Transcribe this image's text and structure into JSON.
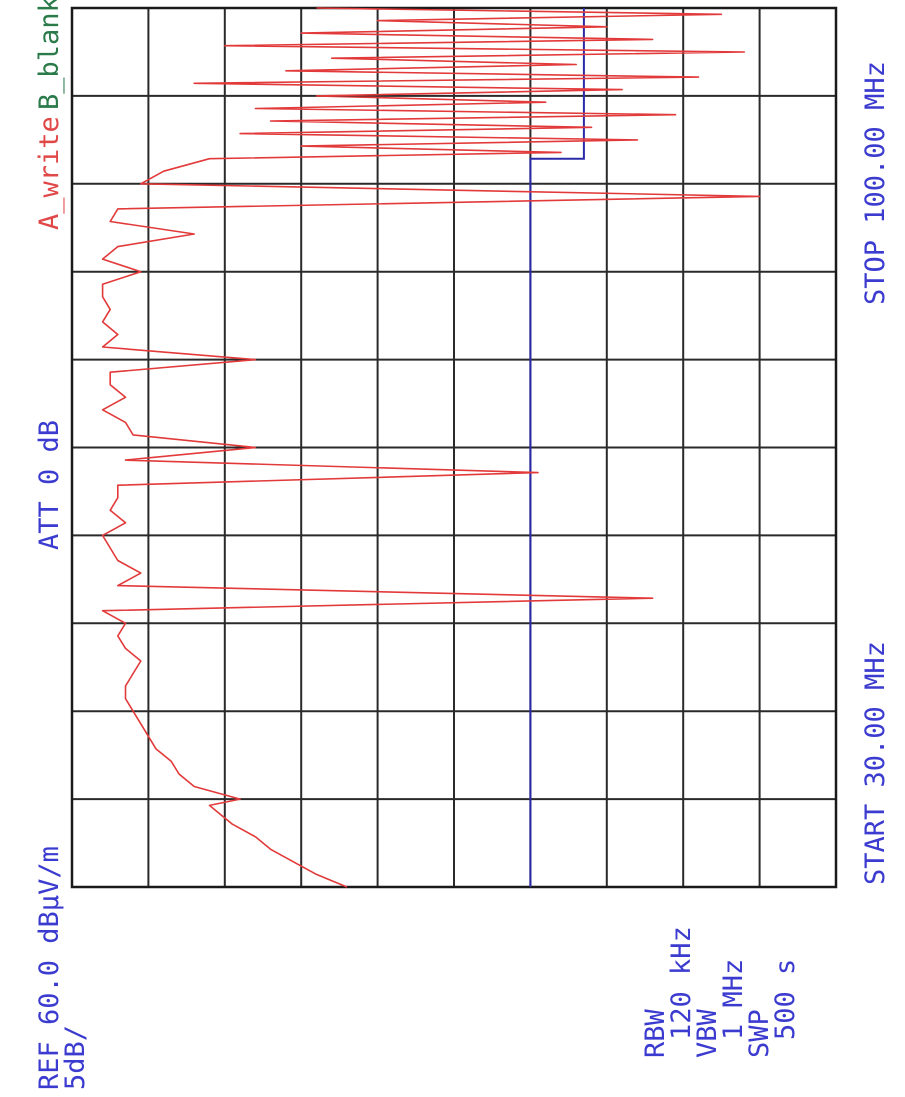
{
  "chart_data": {
    "type": "line",
    "orientation": "rotated-90-clockwise",
    "x_axis": {
      "start_label": "START 30.00 MHz",
      "stop_label": "STOP 100.00 MHz",
      "range_mhz": [
        30,
        100
      ],
      "divisions": 10
    },
    "y_axis": {
      "ref_label": "REF 60.0 dBμV/m",
      "scale_label": "5dB/",
      "ref_db": 60,
      "db_per_div": 5,
      "range_db": [
        10,
        60
      ],
      "divisions": 10
    },
    "settings": {
      "att_label": "ATT 0 dB",
      "rbw_label": "RBW",
      "rbw_value": "120 kHz",
      "vbw_label": "VBW",
      "vbw_value": "1 MHz",
      "swp_label": "SWP",
      "swp_value": "500 s"
    },
    "trace_labels": {
      "a": "A_write",
      "b": "B_blank"
    },
    "colors": {
      "trace_a": "#e23a3a",
      "limit_b": "#2a2aa8",
      "grid": "#2a2a2a",
      "text": "#3b3bd0",
      "label_a": "#e04848",
      "label_b": "#2a7a4a"
    },
    "series": [
      {
        "id": "limit",
        "segments": [
          {
            "x": [
              30,
              88
            ],
            "y": [
              40,
              40
            ]
          },
          {
            "x": [
              88,
              100
            ],
            "y": [
              43.5,
              43.5
            ]
          }
        ]
      },
      {
        "id": "trace_a",
        "x": [
          30.0,
          30.5,
          31.0,
          32.0,
          33.0,
          34.0,
          35.0,
          36.0,
          36.5,
          37.0,
          38.0,
          39.0,
          40.0,
          41.0,
          42.0,
          43.0,
          44.0,
          45.0,
          46.0,
          47.0,
          48.0,
          49.0,
          50.0,
          51.0,
          52.0,
          53.0,
          54.0,
          55.0,
          56.0,
          57.0,
          58.0,
          59.0,
          60.0,
          61.0,
          62.0,
          63.0,
          64.0,
          65.0,
          66.0,
          67.0,
          68.0,
          69.0,
          70.0,
          71.0,
          72.0,
          73.0,
          74.0,
          75.0,
          76.0,
          77.0,
          78.0,
          79.0,
          80.0,
          81.0,
          82.0,
          83.0,
          84.0,
          85.0,
          86.0,
          87.0,
          88.0,
          88.5,
          89.0,
          89.5,
          90.0,
          90.5,
          91.0,
          91.5,
          92.0,
          92.5,
          93.0,
          93.5,
          94.0,
          94.5,
          95.0,
          95.5,
          96.0,
          96.5,
          97.0,
          97.5,
          98.0,
          98.5,
          99.0,
          99.5,
          100.0
        ],
        "y": [
          28.0,
          27.0,
          26.0,
          24.5,
          23.0,
          22.0,
          20.5,
          19.5,
          19.0,
          21.0,
          18.0,
          17.0,
          16.5,
          15.5,
          15.0,
          14.5,
          14.0,
          13.5,
          13.5,
          14.0,
          14.5,
          13.5,
          13.0,
          13.5,
          12.0,
          48.0,
          13.0,
          14.5,
          13.0,
          12.5,
          12.0,
          13.5,
          12.5,
          13.0,
          13.0,
          40.5,
          13.5,
          22.0,
          14.0,
          13.5,
          12.0,
          13.5,
          12.5,
          12.5,
          22.0,
          12.0,
          13.0,
          12.0,
          12.5,
          12.0,
          12.0,
          14.5,
          12.0,
          13.0,
          18.0,
          12.5,
          13.0,
          55.0,
          14.5,
          16.0,
          19.0,
          42.0,
          25.0,
          47.0,
          21.0,
          44.0,
          23.0,
          49.5,
          22.0,
          41.0,
          26.0,
          46.0,
          18.0,
          51.0,
          24.0,
          43.0,
          27.0,
          54.0,
          20.0,
          48.0,
          25.0,
          45.0,
          30.0,
          52.5,
          26.0
        ]
      }
    ]
  }
}
